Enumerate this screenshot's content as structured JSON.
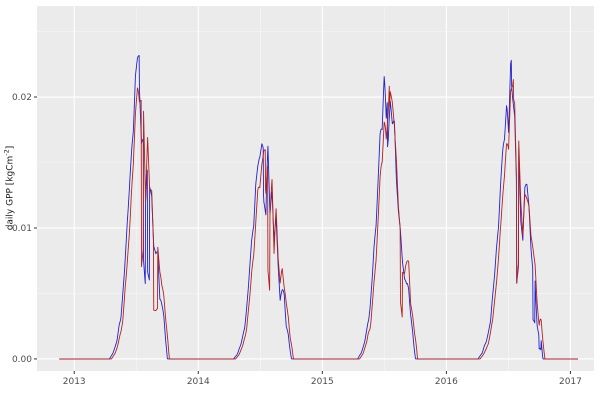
{
  "figure": {
    "bg": "#FFFFFF",
    "panel_bg": "#EBEBEB",
    "grid_major": "#FFFFFF",
    "grid_minor": "#F6F6F6",
    "tick_color": "#333333",
    "label_color": "#4D4D4D"
  },
  "axes": {
    "ylabel_main": "daily GPP [kgCm",
    "ylabel_sup": "-2",
    "ylabel_close": "]",
    "x_tick_labels": [
      "2013",
      "2014",
      "2015",
      "2016",
      "2017"
    ],
    "y_tick_labels": [
      "0.00",
      "0.01",
      "0.02"
    ]
  },
  "chart_data": {
    "type": "line",
    "title": "",
    "xlabel": "",
    "ylabel": "daily GPP [kgCm-2]",
    "x_range": [
      2012.7,
      2017.19
    ],
    "y_range": [
      -0.00092,
      0.02695
    ],
    "x_ticks": [
      2013,
      2014,
      2015,
      2016,
      2017
    ],
    "x_minor_ticks": [
      2013.5,
      2014.5,
      2015.5,
      2016.5
    ],
    "y_ticks": [
      0.0,
      0.01,
      0.02
    ],
    "y_minor_ticks": [
      0.005,
      0.015,
      0.025
    ],
    "grid": true,
    "legend": "none",
    "start_year": 2013,
    "n_years": 4,
    "samples_per_year": 365,
    "data_start": 2012.88,
    "data_end": 2017.06,
    "baseline_value": 0.0,
    "peak_frac": 0.535,
    "annual_width": [
      1.0,
      1.0,
      1.0,
      1.12
    ],
    "seasonal_envelope": [
      [
        0.0,
        0.0
      ],
      [
        0.295,
        0.0
      ],
      [
        0.325,
        0.02
      ],
      [
        0.355,
        0.06
      ],
      [
        0.385,
        0.13
      ],
      [
        0.415,
        0.28
      ],
      [
        0.445,
        0.47
      ],
      [
        0.475,
        0.7
      ],
      [
        0.505,
        0.88
      ],
      [
        0.535,
        1.0
      ],
      [
        0.558,
        0.9
      ],
      [
        0.58,
        0.78
      ],
      [
        0.605,
        0.68
      ],
      [
        0.635,
        0.58
      ],
      [
        0.665,
        0.47
      ],
      [
        0.695,
        0.34
      ],
      [
        0.72,
        0.2
      ],
      [
        0.745,
        0.08
      ],
      [
        0.762,
        0.0
      ],
      [
        1.0,
        0.0
      ]
    ],
    "series": [
      {
        "name": "blue",
        "color": "#2222CC",
        "annual_peaks": [
          0.0262,
          0.0205,
          0.0248,
          0.0252
        ],
        "phase_shift_days": -4
      },
      {
        "name": "red",
        "color": "#B22222",
        "annual_peaks": [
          0.025,
          0.0198,
          0.024,
          0.0235
        ],
        "phase_shift_days": 2
      }
    ],
    "noise": {
      "seed": 7,
      "block_days": 6,
      "shared_fraction": 0.7,
      "depth_pre": 0.18,
      "depth_peak": 0.32,
      "depth_post": 0.55,
      "deep_drop_chance": 0.06,
      "deep_drop_factor": 0.45
    }
  }
}
